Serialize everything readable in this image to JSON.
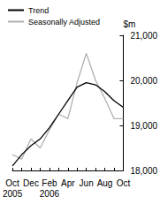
{
  "chart_data": {
    "type": "line",
    "y_label": "$m",
    "categories": [
      "Oct\n2005",
      null,
      "Dec",
      null,
      "Feb\n2006",
      null,
      "Apr",
      null,
      "Jun",
      null,
      "Aug",
      null,
      "Oct"
    ],
    "series": [
      {
        "name": "Trend",
        "color": "#000000",
        "values": [
          18100,
          18350,
          18550,
          18700,
          18950,
          19250,
          19550,
          19850,
          19950,
          19900,
          19750,
          19550,
          19400
        ]
      },
      {
        "name": "Seasonally Adjusted",
        "color": "#b0b0b0",
        "values": [
          18350,
          18250,
          18700,
          18500,
          18900,
          19250,
          19150,
          19950,
          20600,
          20000,
          19600,
          19150,
          19150
        ]
      }
    ],
    "ylim": [
      18000,
      21000
    ],
    "yticks": [
      18000,
      19000,
      20000,
      21000
    ],
    "grid": false,
    "legend": "top-left"
  }
}
